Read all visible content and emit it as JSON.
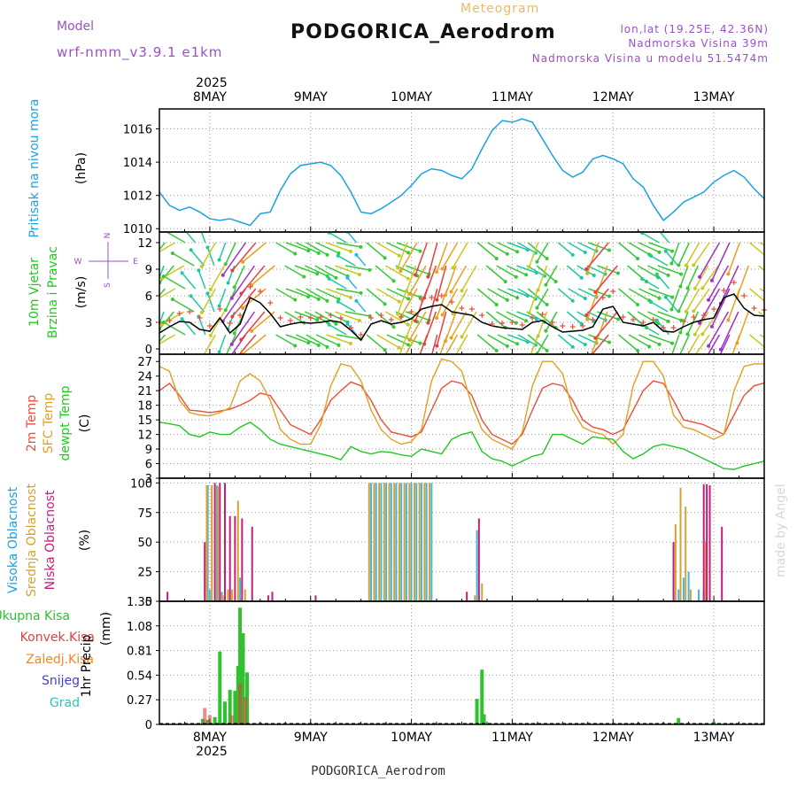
{
  "header": {
    "model_label": "Model",
    "model_name": "wrf-nmm_v3.9.1 e1km",
    "subtitle": "Meteogram",
    "station": "PODGORICA_Aerodrom",
    "lonlat": "lon,lat (19.25E, 42.36N)",
    "elevation": "Nadmorska Visina 39m",
    "model_elevation": "Nadmorska Visina u modelu 51.5474m"
  },
  "axis": {
    "year": "2025",
    "days": [
      "8MAY",
      "9MAY",
      "10MAY",
      "11MAY",
      "12MAY",
      "13MAY"
    ]
  },
  "footer": {
    "station": "PODGORICA_Aerodrom",
    "credit": "made by Angel"
  },
  "colors": {
    "pressure": "#1ba1e2",
    "temp2m": "#e8503a",
    "sfc": "#e0a020",
    "dew": "#22c822",
    "wind_mean": "#000000",
    "gust": "#e8503a",
    "high_cloud": "#40b8e0",
    "mid_cloud": "#d8a030",
    "low_cloud": "#c0207a",
    "total_precip": "#30c030",
    "conv_precip": "#e04040",
    "snow": "#4040d0",
    "frozen": "#e88830",
    "hail": "#30c0c0",
    "label_purple": "#9a50c8",
    "title_orange": "#f0b860"
  },
  "chart_data": [
    {
      "type": "line",
      "panel": "pressure",
      "ylabel": "Pritisak na nivou mora",
      "unit": "(hPa)",
      "ylim": [
        1009.8,
        1017.2
      ],
      "yticks": [
        1010,
        1012,
        1014,
        1016
      ],
      "x": [
        7.5,
        7.6,
        7.7,
        7.8,
        7.9,
        8.0,
        8.1,
        8.2,
        8.3,
        8.4,
        8.5,
        8.6,
        8.7,
        8.8,
        8.9,
        9.0,
        9.1,
        9.2,
        9.3,
        9.4,
        9.5,
        9.6,
        9.7,
        9.8,
        9.9,
        10.0,
        10.1,
        10.2,
        10.3,
        10.4,
        10.5,
        10.6,
        10.7,
        10.8,
        10.9,
        11.0,
        11.1,
        11.2,
        11.3,
        11.4,
        11.5,
        11.6,
        11.7,
        11.8,
        11.9,
        12.0,
        12.1,
        12.2,
        12.3,
        12.4,
        12.5,
        12.6,
        12.7,
        12.8,
        12.9,
        13.0,
        13.1,
        13.2,
        13.3,
        13.4,
        13.5
      ],
      "series": [
        {
          "values": [
            1012.2,
            1011.4,
            1011.1,
            1011.3,
            1011.0,
            1010.6,
            1010.5,
            1010.6,
            1010.4,
            1010.2,
            1010.9,
            1011.0,
            1012.3,
            1013.3,
            1013.8,
            1013.9,
            1014.0,
            1013.8,
            1013.2,
            1012.2,
            1011.0,
            1010.9,
            1011.2,
            1011.6,
            1012.0,
            1012.6,
            1013.3,
            1013.6,
            1013.5,
            1013.2,
            1013.0,
            1013.6,
            1014.8,
            1015.9,
            1016.5,
            1016.4,
            1016.6,
            1016.4,
            1015.4,
            1014.4,
            1013.5,
            1013.1,
            1013.4,
            1014.2,
            1014.4,
            1014.2,
            1013.9,
            1013.0,
            1012.5,
            1011.4,
            1010.5,
            1011.0,
            1011.6,
            1011.9,
            1012.2,
            1012.8,
            1013.2,
            1013.5,
            1013.1,
            1012.4,
            1011.8
          ]
        }
      ]
    },
    {
      "type": "line",
      "panel": "wind",
      "ylabel": "10m Vjetar",
      "ylabel2": "Brzina i Pravac",
      "unit": "(m/s)",
      "compass": {
        "n": "N",
        "s": "S",
        "w": "W",
        "e": "E"
      },
      "ylim": [
        -0.6,
        13.2
      ],
      "yticks": [
        0,
        3,
        6,
        9,
        12
      ],
      "x": [
        7.5,
        7.6,
        7.7,
        7.8,
        7.9,
        8.0,
        8.1,
        8.2,
        8.3,
        8.4,
        8.5,
        8.6,
        8.7,
        8.8,
        8.9,
        9.0,
        9.1,
        9.2,
        9.3,
        9.4,
        9.5,
        9.6,
        9.7,
        9.8,
        9.9,
        10.0,
        10.1,
        10.2,
        10.3,
        10.4,
        10.5,
        10.6,
        10.7,
        10.8,
        10.9,
        11.0,
        11.1,
        11.2,
        11.3,
        11.4,
        11.5,
        11.6,
        11.7,
        11.8,
        11.9,
        12.0,
        12.1,
        12.2,
        12.3,
        12.4,
        12.5,
        12.6,
        12.7,
        12.8,
        12.9,
        13.0,
        13.1,
        13.2,
        13.3,
        13.4,
        13.5
      ],
      "series": [
        {
          "name": "mean",
          "values": [
            1.8,
            2.5,
            3.1,
            3.0,
            2.2,
            2.0,
            3.5,
            1.8,
            2.8,
            5.8,
            5.2,
            4.0,
            2.5,
            2.8,
            3.0,
            2.9,
            3.0,
            3.2,
            3.0,
            2.1,
            1.0,
            2.8,
            3.2,
            2.8,
            3.0,
            3.4,
            4.5,
            4.8,
            5.0,
            4.2,
            4.0,
            3.8,
            3.0,
            2.6,
            2.4,
            2.3,
            2.2,
            3.0,
            3.2,
            2.5,
            1.9,
            2.0,
            2.1,
            2.5,
            4.5,
            4.8,
            3.0,
            2.8,
            2.6,
            3.0,
            2.0,
            1.9,
            2.5,
            3.0,
            3.3,
            3.5,
            5.8,
            6.2,
            4.6,
            3.8,
            3.7
          ]
        },
        {
          "name": "gust",
          "values": [
            3.0,
            3.2,
            4.0,
            4.2,
            3.5,
            2.6,
            4.5,
            2.9,
            3.8,
            7.0,
            6.5,
            5.2,
            3.5,
            3.2,
            3.6,
            3.5,
            3.6,
            3.8,
            3.5,
            2.4,
            1.6,
            3.5,
            3.8,
            3.3,
            3.6,
            4.2,
            5.6,
            5.8,
            6.0,
            5.3,
            4.6,
            4.5,
            3.8,
            2.8,
            2.9,
            3.0,
            2.7,
            3.5,
            3.9,
            3.0,
            2.6,
            2.5,
            2.6,
            3.3,
            5.8,
            6.5,
            3.6,
            3.3,
            3.0,
            3.3,
            2.4,
            2.4,
            3.1,
            3.6,
            3.8,
            4.5,
            6.6,
            7.5,
            6.0,
            4.6,
            4.4
          ]
        },
        {
          "name": "direction_deg",
          "values": [
            200,
            220,
            240,
            300,
            320,
            340,
            210,
            200,
            205,
            215,
            220,
            230,
            120,
            110,
            115,
            120,
            115,
            110,
            100,
            300,
            320,
            130,
            120,
            115,
            110,
            200,
            210,
            200,
            195,
            200,
            210,
            210,
            130,
            120,
            115,
            110,
            120,
            130,
            200,
            210,
            130,
            120,
            115,
            110,
            200,
            220,
            130,
            120,
            115,
            110,
            300,
            320,
            200,
            205,
            210,
            215,
            210,
            205,
            200,
            130,
            120
          ]
        }
      ]
    },
    {
      "type": "line",
      "panel": "temperature",
      "ylabel": "2m Temp",
      "ylabel2": "SFC Temp",
      "ylabel3": "dewpt Temp",
      "unit": "(C)",
      "ylim": [
        3,
        28.5
      ],
      "yticks": [
        3,
        6,
        9,
        12,
        15,
        18,
        21,
        24,
        27
      ],
      "x": [
        7.5,
        7.6,
        7.7,
        7.8,
        7.9,
        8.0,
        8.1,
        8.2,
        8.3,
        8.4,
        8.5,
        8.6,
        8.7,
        8.8,
        8.9,
        9.0,
        9.1,
        9.2,
        9.3,
        9.4,
        9.5,
        9.6,
        9.7,
        9.8,
        9.9,
        10.0,
        10.1,
        10.2,
        10.3,
        10.4,
        10.5,
        10.6,
        10.7,
        10.8,
        10.9,
        11.0,
        11.1,
        11.2,
        11.3,
        11.4,
        11.5,
        11.6,
        11.7,
        11.8,
        11.9,
        12.0,
        12.1,
        12.2,
        12.3,
        12.4,
        12.5,
        12.6,
        12.7,
        12.8,
        12.9,
        13.0,
        13.1,
        13.2,
        13.3,
        13.4,
        13.5
      ],
      "series": [
        {
          "name": "2m Temp",
          "values": [
            21.0,
            22.5,
            20.0,
            17.0,
            16.8,
            16.5,
            16.8,
            17.2,
            18.0,
            19.0,
            20.5,
            20.0,
            17.0,
            14.0,
            13.0,
            12.0,
            15.0,
            19.0,
            21.0,
            22.8,
            22.0,
            19.0,
            15.0,
            12.5,
            12.0,
            11.5,
            12.5,
            17.0,
            21.5,
            23.0,
            22.5,
            20.0,
            15.0,
            12.0,
            11.0,
            10.0,
            12.0,
            17.0,
            21.5,
            22.5,
            22.0,
            19.0,
            15.0,
            13.5,
            13.0,
            12.0,
            13.0,
            17.0,
            21.0,
            23.0,
            22.5,
            19.0,
            15.0,
            14.5,
            14.0,
            13.0,
            12.0,
            16.0,
            20.0,
            22.0,
            22.6
          ]
        },
        {
          "name": "SFC Temp",
          "values": [
            26.0,
            25.0,
            19.0,
            16.5,
            16.0,
            15.8,
            16.5,
            17.5,
            23.0,
            24.5,
            23.0,
            19.0,
            13.0,
            11.0,
            10.0,
            10.0,
            14.0,
            22.0,
            26.5,
            26.0,
            23.0,
            17.0,
            13.0,
            11.0,
            10.0,
            10.5,
            13.0,
            23.0,
            27.5,
            27.0,
            25.0,
            18.0,
            13.0,
            11.0,
            10.0,
            9.0,
            12.5,
            22.0,
            27.0,
            27.0,
            24.5,
            17.0,
            13.5,
            12.5,
            12.0,
            10.0,
            12.0,
            22.0,
            27.0,
            27.0,
            24.0,
            16.0,
            13.5,
            13.0,
            12.0,
            11.0,
            12.0,
            21.0,
            26.0,
            26.5,
            26.5
          ]
        },
        {
          "name": "dewpt Temp",
          "values": [
            14.5,
            14.2,
            13.8,
            12.0,
            11.5,
            12.5,
            12.0,
            12.0,
            13.5,
            14.5,
            13.0,
            11.0,
            10.0,
            9.5,
            9.0,
            8.5,
            8.0,
            7.5,
            6.8,
            9.5,
            8.5,
            8.0,
            8.5,
            8.3,
            7.8,
            7.5,
            9.0,
            8.5,
            8.0,
            11.0,
            12.0,
            12.5,
            8.5,
            7.0,
            6.5,
            5.5,
            6.5,
            7.5,
            8.0,
            12.0,
            12.0,
            11.0,
            10.0,
            11.5,
            11.2,
            11.0,
            8.5,
            7.0,
            8.0,
            9.5,
            10.0,
            9.5,
            9.0,
            8.0,
            7.0,
            6.0,
            5.0,
            4.8,
            5.5,
            6.0,
            6.5
          ]
        }
      ]
    },
    {
      "type": "bar",
      "panel": "cloud",
      "ylabel": "Visoka Oblacnost",
      "ylabel2": "Srednja Oblacnost",
      "ylabel3": "Niska Oblacnost",
      "unit": "(%)",
      "ylim": [
        0,
        104
      ],
      "yticks": [
        0,
        25,
        50,
        75,
        100
      ],
      "series": [
        {
          "name": "Visoka Oblacnost",
          "x": [
            7.98,
            8.0,
            8.07,
            8.12,
            8.3,
            9.6,
            9.65,
            9.7,
            9.75,
            9.8,
            9.85,
            9.9,
            9.95,
            10.0,
            10.05,
            10.1,
            10.15,
            10.2,
            10.65,
            12.65,
            12.7,
            12.75,
            12.85,
            12.9
          ],
          "values": [
            98,
            10,
            98,
            8,
            20,
            100,
            100,
            100,
            100,
            100,
            100,
            100,
            100,
            100,
            100,
            100,
            100,
            100,
            60,
            10,
            20,
            25,
            10,
            8
          ]
        },
        {
          "name": "Srednja Oblacnost",
          "x": [
            7.97,
            8.02,
            8.08,
            8.13,
            8.18,
            8.22,
            8.28,
            8.35,
            9.58,
            9.63,
            9.68,
            9.73,
            9.78,
            9.83,
            9.88,
            9.93,
            9.98,
            10.03,
            10.08,
            10.13,
            10.18,
            10.63,
            10.7,
            12.62,
            12.67,
            12.72,
            12.77,
            12.92
          ],
          "values": [
            98,
            98,
            97,
            5,
            10,
            10,
            85,
            10,
            100,
            100,
            100,
            100,
            100,
            100,
            100,
            100,
            100,
            100,
            100,
            100,
            100,
            5,
            15,
            65,
            96,
            80,
            10,
            50
          ]
        },
        {
          "name": "Niska Oblacnost",
          "x": [
            7.58,
            7.95,
            8.05,
            8.1,
            8.15,
            8.2,
            8.25,
            8.32,
            8.42,
            8.58,
            8.62,
            9.05,
            10.55,
            10.67,
            12.0,
            12.6,
            12.9,
            12.93,
            12.96,
            13.08
          ],
          "values": [
            8,
            50,
            100,
            100,
            100,
            72,
            72,
            70,
            63,
            5,
            8,
            5,
            8,
            70,
            3,
            50,
            99,
            99,
            98,
            63
          ]
        }
      ]
    },
    {
      "type": "bar",
      "panel": "precipitation",
      "ylabel": "1hr Precip",
      "unit": "(mm)",
      "legend": [
        "Ukupna Kisa",
        "Konvek.Kisa",
        "Zaledj.Kisa",
        "Snijeg",
        "Grad"
      ],
      "ylim": [
        0,
        1.35
      ],
      "yticks": [
        0,
        0.27,
        0.54,
        0.81,
        1.08,
        1.35
      ],
      "series": [
        {
          "name": "Ukupna Kisa",
          "x": [
            7.93,
            7.98,
            8.05,
            8.1,
            8.15,
            8.2,
            8.25,
            8.28,
            8.3,
            8.33,
            8.37,
            10.65,
            10.7,
            10.72,
            12.65,
            13.0
          ],
          "values": [
            0.06,
            0.05,
            0.08,
            0.8,
            0.25,
            0.38,
            0.37,
            0.64,
            1.28,
            1.0,
            0.57,
            0.28,
            0.6,
            0.11,
            0.07,
            0.03
          ]
        },
        {
          "name": "Konvek.Kisa",
          "x": [
            7.95,
            8.0,
            8.22,
            8.3,
            8.35
          ],
          "values": [
            0.18,
            0.1,
            0.1,
            0.45,
            0.3
          ]
        },
        {
          "name": "Zaledj.Kisa",
          "values": []
        },
        {
          "name": "Snijeg",
          "values": []
        },
        {
          "name": "Grad",
          "values": []
        }
      ]
    }
  ]
}
